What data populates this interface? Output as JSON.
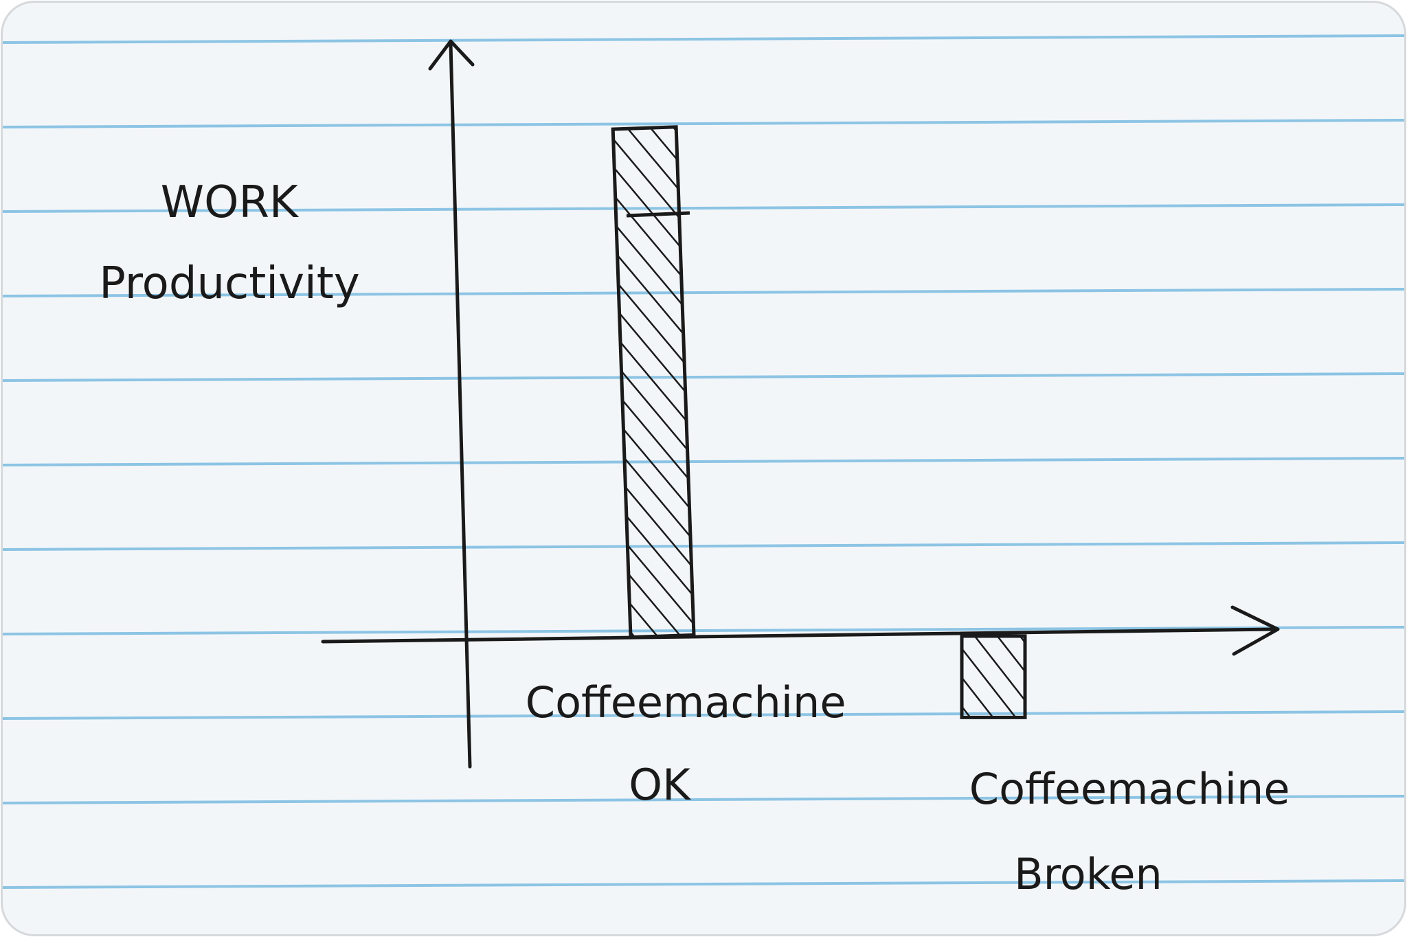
{
  "colors": {
    "paper": "#f3f6f9",
    "rule": "#8cc4e4",
    "ink": "#1a1a1a"
  },
  "chart_data": {
    "type": "bar",
    "ylabel_lines": [
      "WORK",
      "Productivity"
    ],
    "categories": [
      {
        "lines": [
          "Coffeemachine",
          "OK"
        ]
      },
      {
        "lines": [
          "Coffeemachine",
          "Broken"
        ]
      }
    ],
    "values": [
      100,
      -16
    ],
    "ylim": [
      -30,
      120
    ],
    "grid": false,
    "legend": "none",
    "bar_fill": "hatched"
  }
}
